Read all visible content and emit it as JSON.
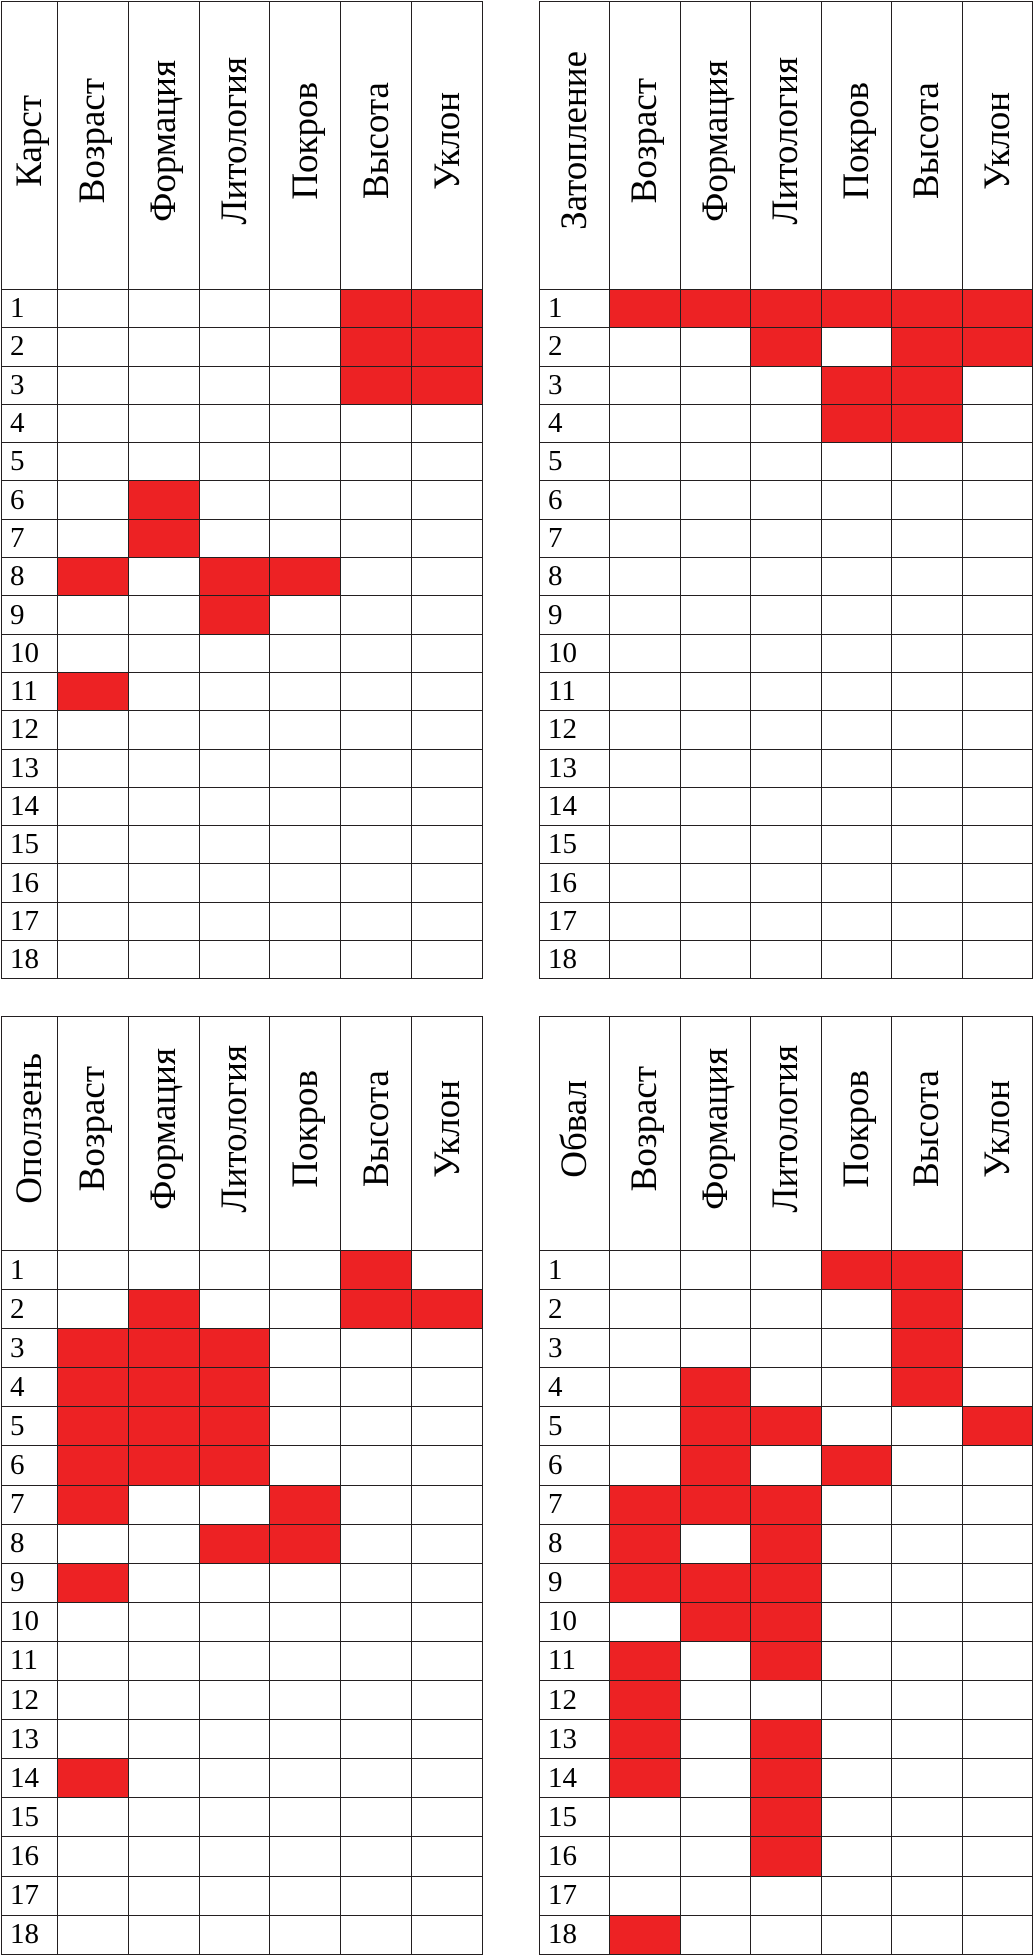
{
  "columns": [
    "Возраст",
    "Формация",
    "Литология",
    "Покров",
    "Высота",
    "Уклон"
  ],
  "row_numbers": [
    "1",
    "2",
    "3",
    "4",
    "5",
    "6",
    "7",
    "8",
    "9",
    "10",
    "11",
    "12",
    "13",
    "14",
    "15",
    "16",
    "17",
    "18"
  ],
  "fill_color": "#ed2224",
  "tables": [
    {
      "title": "Карст",
      "filled": {
        "1": [
          4,
          5
        ],
        "2": [
          4,
          5
        ],
        "3": [
          4,
          5
        ],
        "6": [
          1
        ],
        "7": [
          1
        ],
        "8": [
          0,
          2,
          3
        ],
        "9": [
          2
        ],
        "11": [
          0
        ]
      }
    },
    {
      "title": "Затопление",
      "filled": {
        "1": [
          0,
          1,
          2,
          3,
          4,
          5
        ],
        "2": [
          2,
          4,
          5
        ],
        "3": [
          3,
          4
        ],
        "4": [
          3,
          4
        ]
      }
    },
    {
      "title": "Оползень",
      "filled": {
        "1": [
          4
        ],
        "2": [
          1,
          4,
          5
        ],
        "3": [
          0,
          1,
          2
        ],
        "4": [
          0,
          1,
          2
        ],
        "5": [
          0,
          1,
          2
        ],
        "6": [
          0,
          1,
          2
        ],
        "7": [
          0,
          3
        ],
        "8": [
          2,
          3
        ],
        "9": [
          0
        ],
        "14": [
          0
        ]
      }
    },
    {
      "title": "Обвал",
      "filled": {
        "1": [
          3,
          4
        ],
        "2": [
          4
        ],
        "3": [
          4
        ],
        "4": [
          1,
          4
        ],
        "5": [
          1,
          2,
          5
        ],
        "6": [
          1,
          3
        ],
        "7": [
          0,
          1,
          2
        ],
        "8": [
          0,
          2
        ],
        "9": [
          0,
          1,
          2
        ],
        "10": [
          1,
          2
        ],
        "11": [
          0,
          2
        ],
        "12": [
          0
        ],
        "13": [
          0,
          2
        ],
        "14": [
          0,
          2
        ],
        "15": [
          2
        ],
        "16": [
          2
        ],
        "18": [
          0
        ]
      }
    }
  ]
}
